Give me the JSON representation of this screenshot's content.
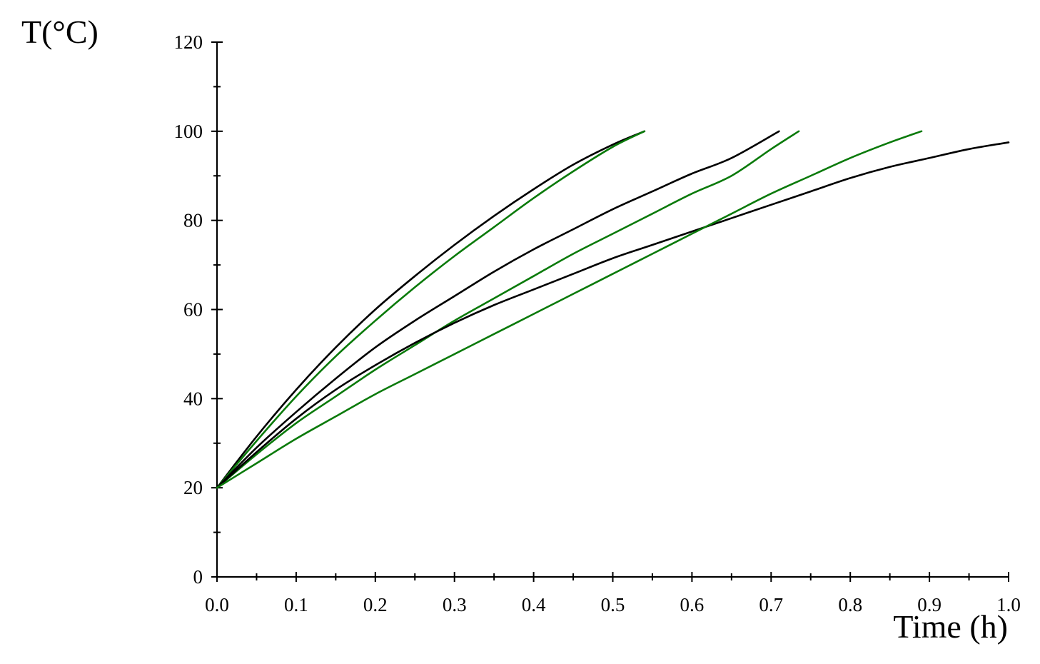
{
  "chart_data": {
    "type": "line",
    "xlabel": "Time (h)",
    "ylabel": "T(°C)",
    "xlim": [
      0.0,
      1.0
    ],
    "ylim": [
      0,
      120
    ],
    "x_ticks": [
      "0.0",
      "0.1",
      "0.2",
      "0.3",
      "0.4",
      "0.5",
      "0.6",
      "0.7",
      "0.8",
      "0.9",
      "1.0"
    ],
    "y_ticks": [
      "0",
      "20",
      "40",
      "60",
      "80",
      "100",
      "120"
    ],
    "grid": false,
    "legend": "none",
    "colors": {
      "black": "#000000",
      "green": "#0a7a0a"
    },
    "series": [
      {
        "color": "#000000",
        "x": [
          0.0,
          0.05,
          0.1,
          0.15,
          0.2,
          0.25,
          0.3,
          0.35,
          0.4,
          0.45,
          0.5,
          0.54
        ],
        "y": [
          20,
          31.5,
          42,
          51.5,
          60,
          67.5,
          74.5,
          81,
          87,
          92.5,
          97,
          100
        ]
      },
      {
        "color": "#0a7a0a",
        "x": [
          0.0,
          0.05,
          0.1,
          0.15,
          0.2,
          0.25,
          0.3,
          0.35,
          0.4,
          0.45,
          0.5,
          0.54
        ],
        "y": [
          20,
          30.5,
          40.5,
          49.5,
          57.5,
          65,
          72,
          78.5,
          85,
          91,
          96.5,
          100
        ]
      },
      {
        "color": "#000000",
        "x": [
          0.0,
          0.05,
          0.1,
          0.15,
          0.2,
          0.25,
          0.3,
          0.35,
          0.4,
          0.45,
          0.5,
          0.55,
          0.6,
          0.65,
          0.71
        ],
        "y": [
          20,
          29,
          37,
          44.5,
          51.5,
          57.5,
          63,
          68.5,
          73.5,
          78,
          82.5,
          86.5,
          90.5,
          94,
          100
        ]
      },
      {
        "color": "#0a7a0a",
        "x": [
          0.0,
          0.05,
          0.1,
          0.15,
          0.2,
          0.25,
          0.3,
          0.35,
          0.4,
          0.45,
          0.5,
          0.55,
          0.6,
          0.65,
          0.7,
          0.735
        ],
        "y": [
          20,
          27.5,
          34.5,
          40.5,
          46.5,
          52,
          57.5,
          62.5,
          67.5,
          72.5,
          77,
          81.5,
          86,
          90,
          96,
          100
        ]
      },
      {
        "color": "#000000",
        "x": [
          0.0,
          0.05,
          0.1,
          0.15,
          0.2,
          0.25,
          0.3,
          0.35,
          0.4,
          0.45,
          0.5,
          0.55,
          0.6,
          0.65,
          0.7,
          0.75,
          0.8,
          0.85,
          0.9,
          0.95,
          1.0
        ],
        "y": [
          20,
          28,
          35.5,
          42,
          47.5,
          52.5,
          57,
          61,
          64.5,
          68,
          71.5,
          74.5,
          77.5,
          80.5,
          83.5,
          86.5,
          89.5,
          92,
          94,
          96,
          97.5
        ]
      },
      {
        "color": "#0a7a0a",
        "x": [
          0.0,
          0.05,
          0.1,
          0.15,
          0.2,
          0.25,
          0.3,
          0.35,
          0.4,
          0.45,
          0.5,
          0.55,
          0.6,
          0.65,
          0.7,
          0.75,
          0.8,
          0.85,
          0.89
        ],
        "y": [
          20,
          25.5,
          31,
          36,
          41,
          45.5,
          50,
          54.5,
          59,
          63.5,
          68,
          72.5,
          77,
          81.5,
          86,
          90,
          94,
          97.5,
          100
        ]
      }
    ]
  }
}
